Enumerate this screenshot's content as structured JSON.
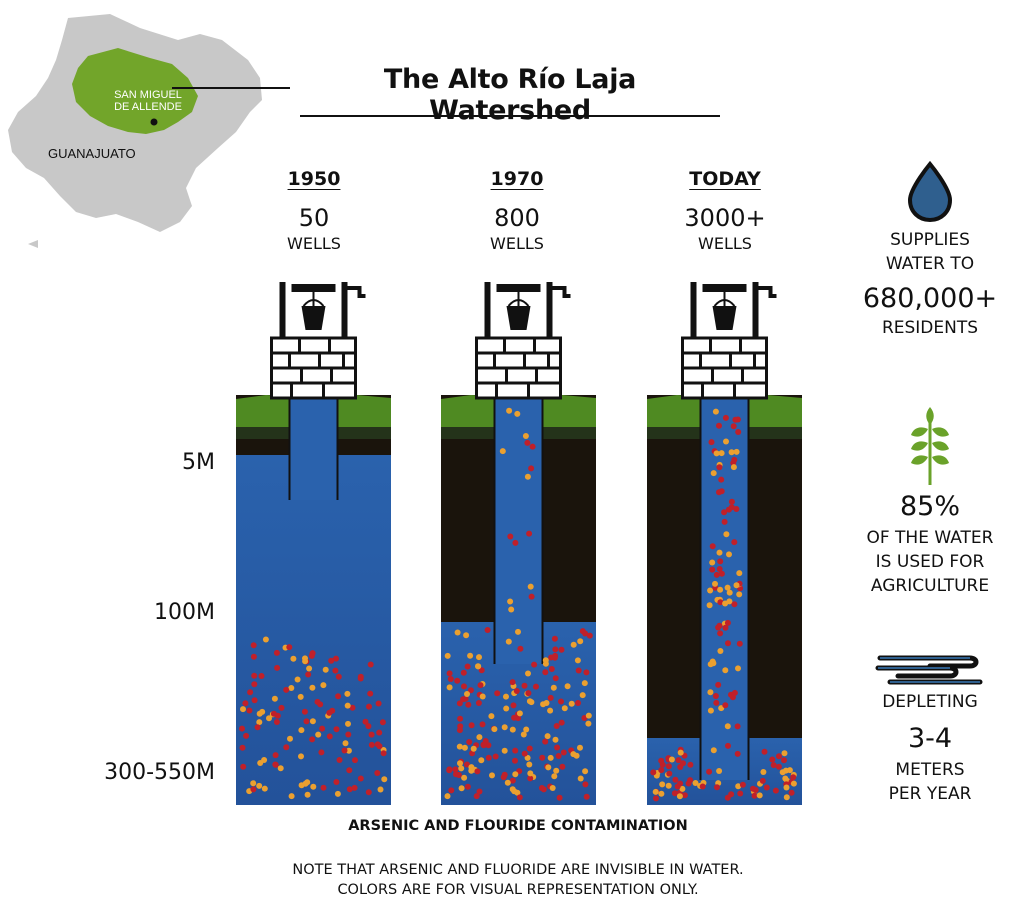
{
  "title": "The Alto Río Laja Watershed",
  "map": {
    "region_label": "GUANAJUATO",
    "city_label_line1": "SAN MIGUEL",
    "city_label_line2": "DE ALLENDE",
    "region_color": "#c8c8c8",
    "highlight_color": "#72a52a"
  },
  "periods": [
    {
      "label": "1950",
      "count": "50",
      "unit": "WELLS",
      "aquifer_top_depth": "5M",
      "contamination": "low"
    },
    {
      "label": "1970",
      "count": "800",
      "unit": "WELLS",
      "aquifer_top_depth": "100M",
      "contamination": "medium"
    },
    {
      "label": "TODAY",
      "count": "3000+",
      "unit": "WELLS",
      "aquifer_top_depth": "300-550M",
      "contamination": "high"
    }
  ],
  "depth_labels": [
    "5M",
    "100M",
    "300-550M"
  ],
  "stats": {
    "water": {
      "icon": "water-drop-icon",
      "line1": "SUPPLIES",
      "line2": "WATER TO",
      "value": "680,000+",
      "line3": "RESIDENTS"
    },
    "agriculture": {
      "icon": "wheat-icon",
      "value": "85%",
      "line1": "OF THE WATER",
      "line2": "IS USED FOR",
      "line3": "AGRICULTURE"
    },
    "depletion": {
      "icon": "water-waves-icon",
      "line1": "DEPLETING",
      "value": "3-4",
      "line2": "METERS",
      "line3": "PER YEAR"
    }
  },
  "contamination_caption": "ARSENIC AND FLOURIDE CONTAMINATION",
  "note_line1": "NOTE THAT ARSENIC AND FLUORIDE ARE INVISIBLE IN WATER.",
  "note_line2": "COLORS ARE FOR VISUAL REPRESENTATION ONLY.",
  "colors": {
    "water": "#2a62ad",
    "soil": "#1a140c",
    "grass": "#4f8a22",
    "arsenic": "#c0202a",
    "fluoride": "#eba030",
    "drop": "#2f5f8e"
  }
}
